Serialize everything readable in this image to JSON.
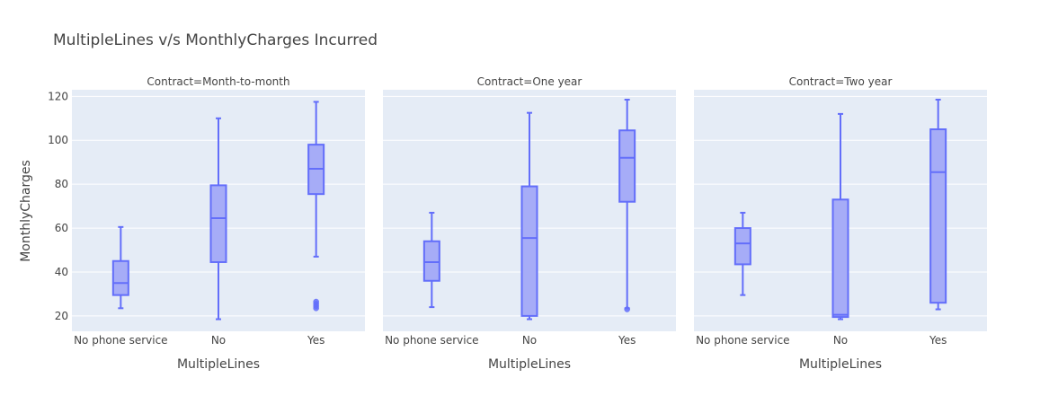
{
  "chart_data": {
    "type": "box",
    "title": "MultipleLines v/s MonthlyCharges Incurred",
    "xlabel": "MultipleLines",
    "ylabel": "MonthlyCharges",
    "ylim": [
      13,
      123
    ],
    "yticks": [
      20,
      40,
      60,
      80,
      100,
      120
    ],
    "categories": [
      "No phone service",
      "No",
      "Yes"
    ],
    "grid": true,
    "colors": {
      "box_line": "#636efa",
      "box_fill": "#a6acf7",
      "plot_bg": "#e5ecf6",
      "grid": "#ffffff",
      "text": "#444444"
    },
    "facets": [
      {
        "label": "Contract=Month-to-month",
        "boxes": [
          {
            "category": "No phone service",
            "min": 23.5,
            "q1": 29.5,
            "median": 35,
            "q3": 45,
            "max": 60.5,
            "outliers": []
          },
          {
            "category": "No",
            "min": 18.5,
            "q1": 44.5,
            "median": 64.5,
            "q3": 79.5,
            "max": 110,
            "outliers": []
          },
          {
            "category": "Yes",
            "min": 47,
            "q1": 75.5,
            "median": 87,
            "q3": 98,
            "max": 117.5,
            "outliers": [
              23.5,
              24.5,
              25.5,
              26.5
            ]
          }
        ]
      },
      {
        "label": "Contract=One year",
        "boxes": [
          {
            "category": "No phone service",
            "min": 24,
            "q1": 36,
            "median": 44.5,
            "q3": 54,
            "max": 67,
            "outliers": []
          },
          {
            "category": "No",
            "min": 18.5,
            "q1": 20,
            "median": 55.5,
            "q3": 79,
            "max": 112.5,
            "outliers": []
          },
          {
            "category": "Yes",
            "min": 23.5,
            "q1": 72,
            "median": 92,
            "q3": 104.5,
            "max": 118.5,
            "outliers": [
              23
            ]
          }
        ]
      },
      {
        "label": "Contract=Two year",
        "boxes": [
          {
            "category": "No phone service",
            "min": 29.5,
            "q1": 43.5,
            "median": 53,
            "q3": 60,
            "max": 67,
            "outliers": []
          },
          {
            "category": "No",
            "min": 18.5,
            "q1": 19.5,
            "median": 20.5,
            "q3": 73,
            "max": 112,
            "outliers": []
          },
          {
            "category": "Yes",
            "min": 23,
            "q1": 26,
            "median": 85.5,
            "q3": 105,
            "max": 118.5,
            "outliers": []
          }
        ]
      }
    ]
  }
}
